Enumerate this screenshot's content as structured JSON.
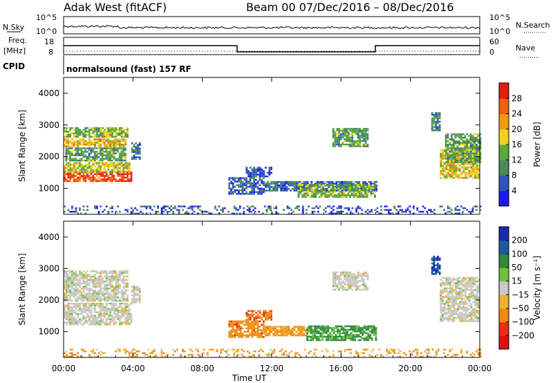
{
  "header": {
    "radar": "Adak West (fitACF)",
    "beam_date": "Beam 00  07/Dec/2016 – 08/Dec/2016"
  },
  "top_panels": {
    "nsky_label": "N.Sky",
    "nsky_ticks": [
      "10^5",
      "10^0"
    ],
    "nsearch_label": "N.Search",
    "nsearch_ticks": [
      "10^5",
      "10^0"
    ],
    "freq_label": "Freq.",
    "freq_unit": "[MHz]",
    "freq_ticks": [
      "18",
      "8"
    ],
    "nave_label": "Nave",
    "nave_ticks": [
      "60",
      "0"
    ],
    "cpid_label": "CPID",
    "cpid_value": "normalsound (fast) 157 RF"
  },
  "colors": {
    "power_scale": [
      "#1a1af0",
      "#2f56c0",
      "#4a8a5a",
      "#5aaa3a",
      "#f0d020",
      "#f09a10",
      "#f06010",
      "#e02010"
    ],
    "velocity_scale": [
      "#1a2ab0",
      "#1a5aa0",
      "#2e8a3a",
      "#70c040",
      "#c8c8c8",
      "#f0b030",
      "#f08a10",
      "#e83010",
      "#e01010"
    ]
  },
  "chart_data": [
    {
      "type": "heatmap",
      "title": "Power",
      "xlabel": "Time UT",
      "ylabel": "Slant Range [km]",
      "x_ticks": [
        "00:00",
        "04:00",
        "08:00",
        "12:00",
        "16:00",
        "20:00",
        "00:00"
      ],
      "x_range_hours": [
        0,
        24
      ],
      "y_ticks": [
        "1000",
        "2000",
        "3000",
        "4000"
      ],
      "y_range": [
        180,
        4500
      ],
      "colorbar_label": "Power [dB]",
      "colorbar_ticks": [
        "4",
        "8",
        "12",
        "16",
        "20",
        "24",
        "28"
      ],
      "colorbar_range": [
        0,
        32
      ],
      "regions": [
        {
          "t": [
            0.0,
            3.9
          ],
          "r": [
            1200,
            1500
          ],
          "v": 28
        },
        {
          "t": [
            0.0,
            3.8
          ],
          "r": [
            1500,
            1800
          ],
          "v": 18
        },
        {
          "t": [
            0.1,
            3.6
          ],
          "r": [
            1850,
            2250
          ],
          "v": 12
        },
        {
          "t": [
            0.0,
            3.6
          ],
          "r": [
            2300,
            2550
          ],
          "v": 20
        },
        {
          "t": [
            0.0,
            3.7
          ],
          "r": [
            2600,
            2900
          ],
          "v": 14
        },
        {
          "t": [
            3.9,
            4.4
          ],
          "r": [
            1900,
            2400
          ],
          "v": 8
        },
        {
          "t": [
            9.5,
            11.5
          ],
          "r": [
            800,
            1300
          ],
          "v": 6
        },
        {
          "t": [
            10.5,
            12.0
          ],
          "r": [
            1350,
            1650
          ],
          "v": 5
        },
        {
          "t": [
            11.5,
            18.0
          ],
          "r": [
            900,
            1200
          ],
          "v": 7
        },
        {
          "t": [
            13.5,
            18.0
          ],
          "r": [
            700,
            1100
          ],
          "v": 14
        },
        {
          "t": [
            15.5,
            17.5
          ],
          "r": [
            2300,
            2900
          ],
          "v": 12
        },
        {
          "t": [
            21.2,
            21.7
          ],
          "r": [
            2800,
            3400
          ],
          "v": 10
        },
        {
          "t": [
            21.7,
            24.0
          ],
          "r": [
            1300,
            2200
          ],
          "v": 18
        },
        {
          "t": [
            22.0,
            24.0
          ],
          "r": [
            1800,
            2700
          ],
          "v": 12
        },
        {
          "t": [
            0.0,
            24.0
          ],
          "r": [
            180,
            420
          ],
          "v": 6
        }
      ]
    },
    {
      "type": "heatmap",
      "title": "Velocity",
      "xlabel": "Time UT",
      "ylabel": "Slant Range [km]",
      "x_ticks": [
        "00:00",
        "04:00",
        "08:00",
        "12:00",
        "16:00",
        "20:00",
        "00:00"
      ],
      "x_range_hours": [
        0,
        24
      ],
      "y_ticks": [
        "1000",
        "2000",
        "3000",
        "4000"
      ],
      "y_range": [
        180,
        4500
      ],
      "colorbar_label": "Velocity [m s⁻¹]",
      "colorbar_ticks": [
        "200",
        "100",
        "50",
        "15",
        "−15",
        "−50",
        "−100",
        "−200"
      ],
      "colorbar_range": [
        -250,
        250
      ],
      "regions": [
        {
          "t": [
            0.0,
            3.9
          ],
          "r": [
            1200,
            1900
          ],
          "v": 0
        },
        {
          "t": [
            0.0,
            3.7
          ],
          "r": [
            1950,
            2900
          ],
          "v": 0
        },
        {
          "t": [
            3.9,
            4.4
          ],
          "r": [
            1900,
            2400
          ],
          "v": 0
        },
        {
          "t": [
            9.5,
            11.5
          ],
          "r": [
            800,
            1300
          ],
          "v": -60
        },
        {
          "t": [
            10.5,
            12.0
          ],
          "r": [
            1350,
            1650
          ],
          "v": -70
        },
        {
          "t": [
            11.5,
            14.0
          ],
          "r": [
            850,
            1150
          ],
          "v": -40
        },
        {
          "t": [
            14.0,
            18.0
          ],
          "r": [
            700,
            1150
          ],
          "v": 40
        },
        {
          "t": [
            15.5,
            17.5
          ],
          "r": [
            2300,
            2900
          ],
          "v": 0
        },
        {
          "t": [
            21.2,
            21.7
          ],
          "r": [
            2800,
            3400
          ],
          "v": 150
        },
        {
          "t": [
            21.7,
            24.0
          ],
          "r": [
            1300,
            2700
          ],
          "v": 0
        },
        {
          "t": [
            0.0,
            24.0
          ],
          "r": [
            180,
            420
          ],
          "v": -30
        }
      ]
    }
  ]
}
